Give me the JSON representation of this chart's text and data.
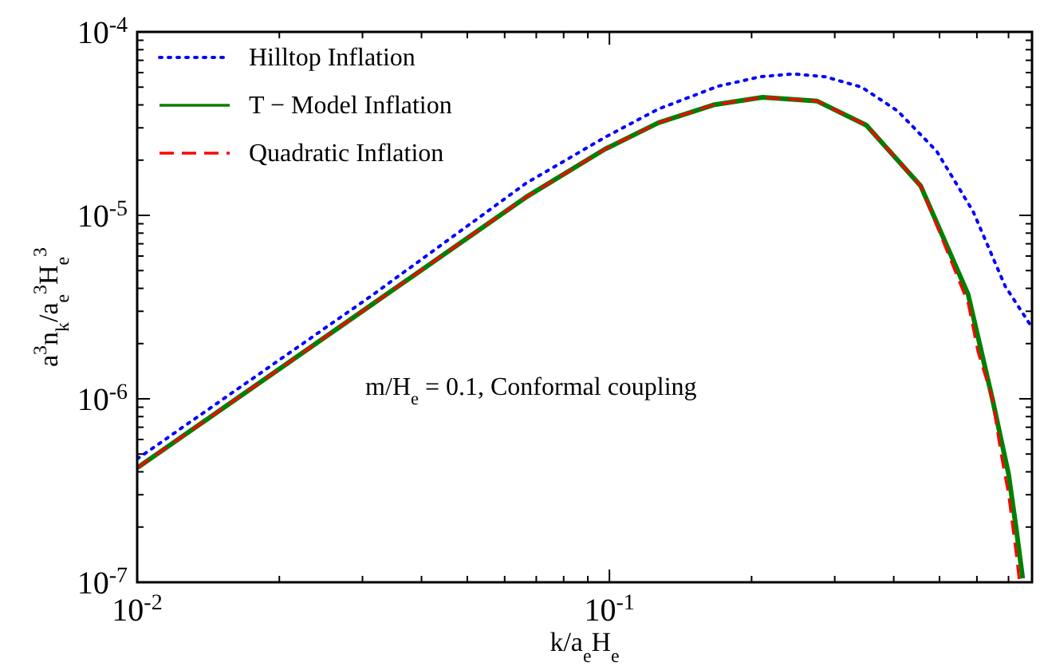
{
  "chart_data": {
    "type": "line",
    "xlabel": "k/a$_{e}$H$_{e}$",
    "ylabel": "a$^{3}$n$_{k}$/a$_{e}$$^{3}$H$_{e}$$^{3}$",
    "annotations": [
      "m/H$_{e}$ = 0.1,  Conformal coupling"
    ],
    "log": "xy",
    "grid": false,
    "legend": "top left",
    "marker": "none",
    "xlim": [
      0.01,
      0.785
    ],
    "ylim": [
      1e-07,
      0.0001
    ],
    "xticks": [
      {
        "value": 0.01,
        "label": "10$^{-2}$"
      },
      {
        "value": 0.02,
        "label": null
      },
      {
        "value": 0.03,
        "label": null
      },
      {
        "value": 0.04,
        "label": null
      },
      {
        "value": 0.05,
        "label": null
      },
      {
        "value": 0.06,
        "label": null
      },
      {
        "value": 0.07,
        "label": null
      },
      {
        "value": 0.08,
        "label": null
      },
      {
        "value": 0.09,
        "label": null
      },
      {
        "value": 0.1,
        "label": "10$^{-1}$"
      },
      {
        "value": 0.2,
        "label": null
      },
      {
        "value": 0.3,
        "label": null
      },
      {
        "value": 0.4,
        "label": null
      },
      {
        "value": 0.5,
        "label": null
      },
      {
        "value": 0.6,
        "label": null
      },
      {
        "value": 0.7,
        "label": null
      }
    ],
    "yticks": [
      {
        "value": 1e-07,
        "label": "10$^{-7}$"
      },
      {
        "value": 2e-07,
        "label": null
      },
      {
        "value": 3e-07,
        "label": null
      },
      {
        "value": 4e-07,
        "label": null
      },
      {
        "value": 5e-07,
        "label": null
      },
      {
        "value": 6e-07,
        "label": null
      },
      {
        "value": 7e-07,
        "label": null
      },
      {
        "value": 8e-07,
        "label": null
      },
      {
        "value": 9e-07,
        "label": null
      },
      {
        "value": 1e-06,
        "label": "10$^{-6}$"
      },
      {
        "value": 2e-06,
        "label": null
      },
      {
        "value": 3e-06,
        "label": null
      },
      {
        "value": 4e-06,
        "label": null
      },
      {
        "value": 5e-06,
        "label": null
      },
      {
        "value": 6e-06,
        "label": null
      },
      {
        "value": 7e-06,
        "label": null
      },
      {
        "value": 8e-06,
        "label": null
      },
      {
        "value": 9e-06,
        "label": null
      },
      {
        "value": 1e-05,
        "label": "10$^{-5}$"
      },
      {
        "value": 2e-05,
        "label": null
      },
      {
        "value": 3e-05,
        "label": null
      },
      {
        "value": 4e-05,
        "label": null
      },
      {
        "value": 5e-05,
        "label": null
      },
      {
        "value": 6e-05,
        "label": null
      },
      {
        "value": 7e-05,
        "label": null
      },
      {
        "value": 8e-05,
        "label": null
      },
      {
        "value": 9e-05,
        "label": null
      },
      {
        "value": 0.0001,
        "label": "10$^{-4}$"
      }
    ],
    "series": [
      {
        "name": "Hilltop Inflation",
        "color": "#0000ff",
        "line_style": "dotted",
        "x": [
          0.01,
          0.0316,
          0.0667,
          0.098,
          0.127,
          0.17,
          0.209,
          0.245,
          0.286,
          0.342,
          0.408,
          0.493,
          0.589,
          0.689,
          0.785
        ],
        "values": [
          4.7e-07,
          3.7e-06,
          1.5e-05,
          2.67e-05,
          3.8e-05,
          5.06e-05,
          5.7e-05,
          5.9e-05,
          5.7e-05,
          5e-05,
          3.7e-05,
          2.24e-05,
          1.05e-05,
          4.1e-06,
          2.45e-06
        ]
      },
      {
        "name": "T − Model Inflation",
        "color": "#008000",
        "line_style": "solid",
        "x": [
          0.01,
          0.0316,
          0.0667,
          0.098,
          0.127,
          0.166,
          0.211,
          0.275,
          0.35,
          0.456,
          0.575,
          0.647,
          0.7,
          0.726,
          0.75
        ],
        "values": [
          4.2e-07,
          3.3e-06,
          1.26e-05,
          2.3e-05,
          3.2e-05,
          4e-05,
          4.4e-05,
          4.2e-05,
          3.1e-05,
          1.45e-05,
          3.7e-06,
          1e-06,
          3.9e-07,
          2e-07,
          1.05e-07
        ]
      },
      {
        "name": "Quadratic Inflation",
        "color": "#ff0000",
        "line_style": "dashed",
        "x": [
          0.01,
          0.0316,
          0.0667,
          0.098,
          0.127,
          0.166,
          0.211,
          0.275,
          0.35,
          0.456,
          0.575,
          0.603,
          0.647,
          0.673,
          0.7,
          0.726,
          0.738
        ],
        "values": [
          4.2e-07,
          3.3e-06,
          1.26e-05,
          2.3e-05,
          3.2e-05,
          4e-05,
          4.4e-05,
          4.2e-05,
          3.1e-05,
          1.45e-05,
          3.3e-06,
          1.8e-06,
          1e-06,
          5.2e-07,
          3e-07,
          1.45e-07,
          1e-07
        ]
      }
    ]
  }
}
